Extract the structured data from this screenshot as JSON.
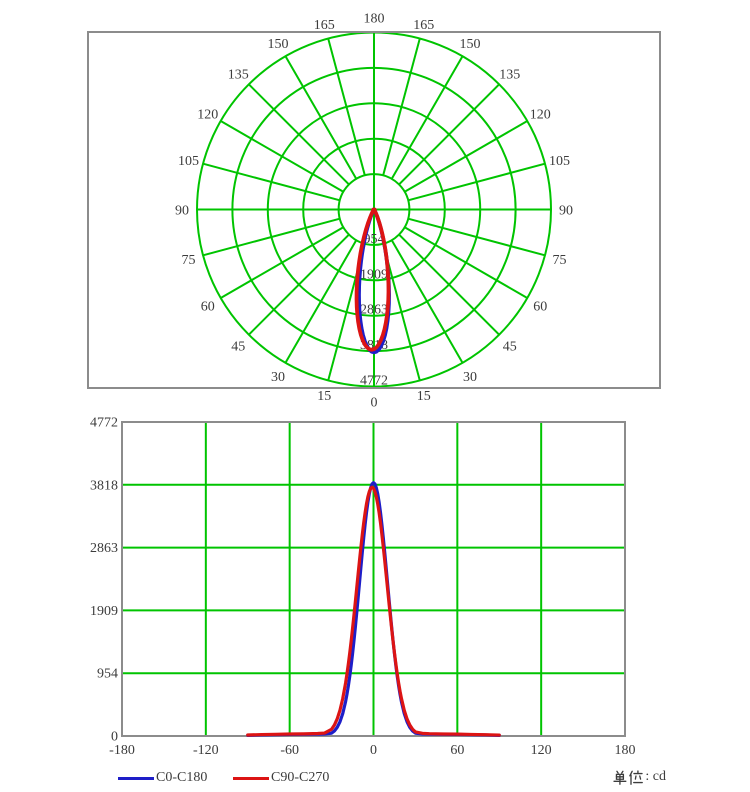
{
  "page": {
    "background": "#ffffff",
    "kind": "photometric distribution report"
  },
  "colors": {
    "grid_green": "#00c400",
    "frame_gray": "#8c8c8c",
    "text_gray": "#3c3c3c",
    "c0_blue": "#1e1ec8",
    "c90_red": "#dc1414"
  },
  "legend": {
    "items": [
      {
        "label": "C0-C180",
        "color": "#1e1ec8"
      },
      {
        "label": "C90-C270",
        "color": "#dc1414"
      }
    ],
    "unit_label": "单位",
    "unit_colon": ":",
    "unit_value": "cd",
    "unit_full": "单位: cd"
  },
  "chart_data": [
    {
      "type": "line",
      "layout": "polar",
      "title": "",
      "unit": "cd",
      "ring_values": [
        954,
        1909,
        2863,
        3818,
        4772
      ],
      "ring_max": 4772,
      "angle_grid_step_deg": 15,
      "angle_labels_deg": [
        0,
        15,
        30,
        45,
        60,
        75,
        90,
        105,
        120,
        135,
        150,
        165,
        180
      ],
      "angle_labels_mirrored": true,
      "beam_direction_deg": 0,
      "angles_deg": [
        -90,
        -80,
        -70,
        -60,
        -50,
        -40,
        -35,
        -30,
        -28,
        -26,
        -24,
        -22,
        -20,
        -19,
        -18,
        -17,
        -16,
        -15,
        -14,
        -13,
        -12,
        -11,
        -10,
        -9,
        -8,
        -7,
        -6,
        -5,
        -4,
        -3,
        -2,
        -1,
        0,
        1,
        2,
        3,
        4,
        5,
        6,
        7,
        8,
        9,
        10,
        11,
        12,
        13,
        14,
        15,
        16,
        17,
        18,
        19,
        20,
        22,
        24,
        26,
        28,
        30,
        35,
        40,
        50,
        60,
        70,
        80,
        90
      ],
      "series": [
        {
          "name": "C0-C180",
          "color": "#1e1ec8",
          "values": [
            10,
            16,
            20,
            24,
            26,
            28,
            30,
            43,
            76,
            131,
            216,
            342,
            521,
            633,
            762,
            907,
            1070,
            1250,
            1445,
            1654,
            1874,
            2102,
            2335,
            2568,
            2796,
            3013,
            3216,
            3398,
            3554,
            3681,
            3774,
            3831,
            3850,
            3831,
            3774,
            3681,
            3554,
            3398,
            3216,
            3013,
            2796,
            2568,
            2335,
            2102,
            1874,
            1654,
            1445,
            1250,
            1070,
            907,
            762,
            633,
            521,
            342,
            216,
            131,
            76,
            43,
            30,
            28,
            26,
            24,
            20,
            16,
            10
          ]
        },
        {
          "name": "C90-C270",
          "color": "#dc1414",
          "values": [
            15,
            22,
            26,
            30,
            32,
            38,
            45,
            103,
            166,
            259,
            391,
            571,
            804,
            943,
            1096,
            1262,
            1441,
            1632,
            1832,
            2039,
            2251,
            2463,
            2672,
            2874,
            3064,
            3240,
            3396,
            3529,
            3637,
            3716,
            3764,
            3780,
            3764,
            3716,
            3637,
            3529,
            3396,
            3240,
            3064,
            2874,
            2672,
            2463,
            2251,
            2039,
            1832,
            1632,
            1441,
            1262,
            1096,
            943,
            804,
            679,
            571,
            391,
            259,
            166,
            103,
            62,
            40,
            35,
            30,
            28,
            24,
            20,
            14
          ]
        }
      ]
    },
    {
      "type": "line",
      "layout": "cartesian",
      "title": "",
      "xlabel": "",
      "ylabel": "",
      "xlim": [
        -180,
        180
      ],
      "ylim": [
        0,
        4772
      ],
      "x_ticks": [
        -180,
        -120,
        -60,
        0,
        60,
        120,
        180
      ],
      "y_ticks": [
        0,
        954,
        1909,
        2863,
        3818,
        4772
      ],
      "grid": true,
      "series_source": 0
    }
  ]
}
